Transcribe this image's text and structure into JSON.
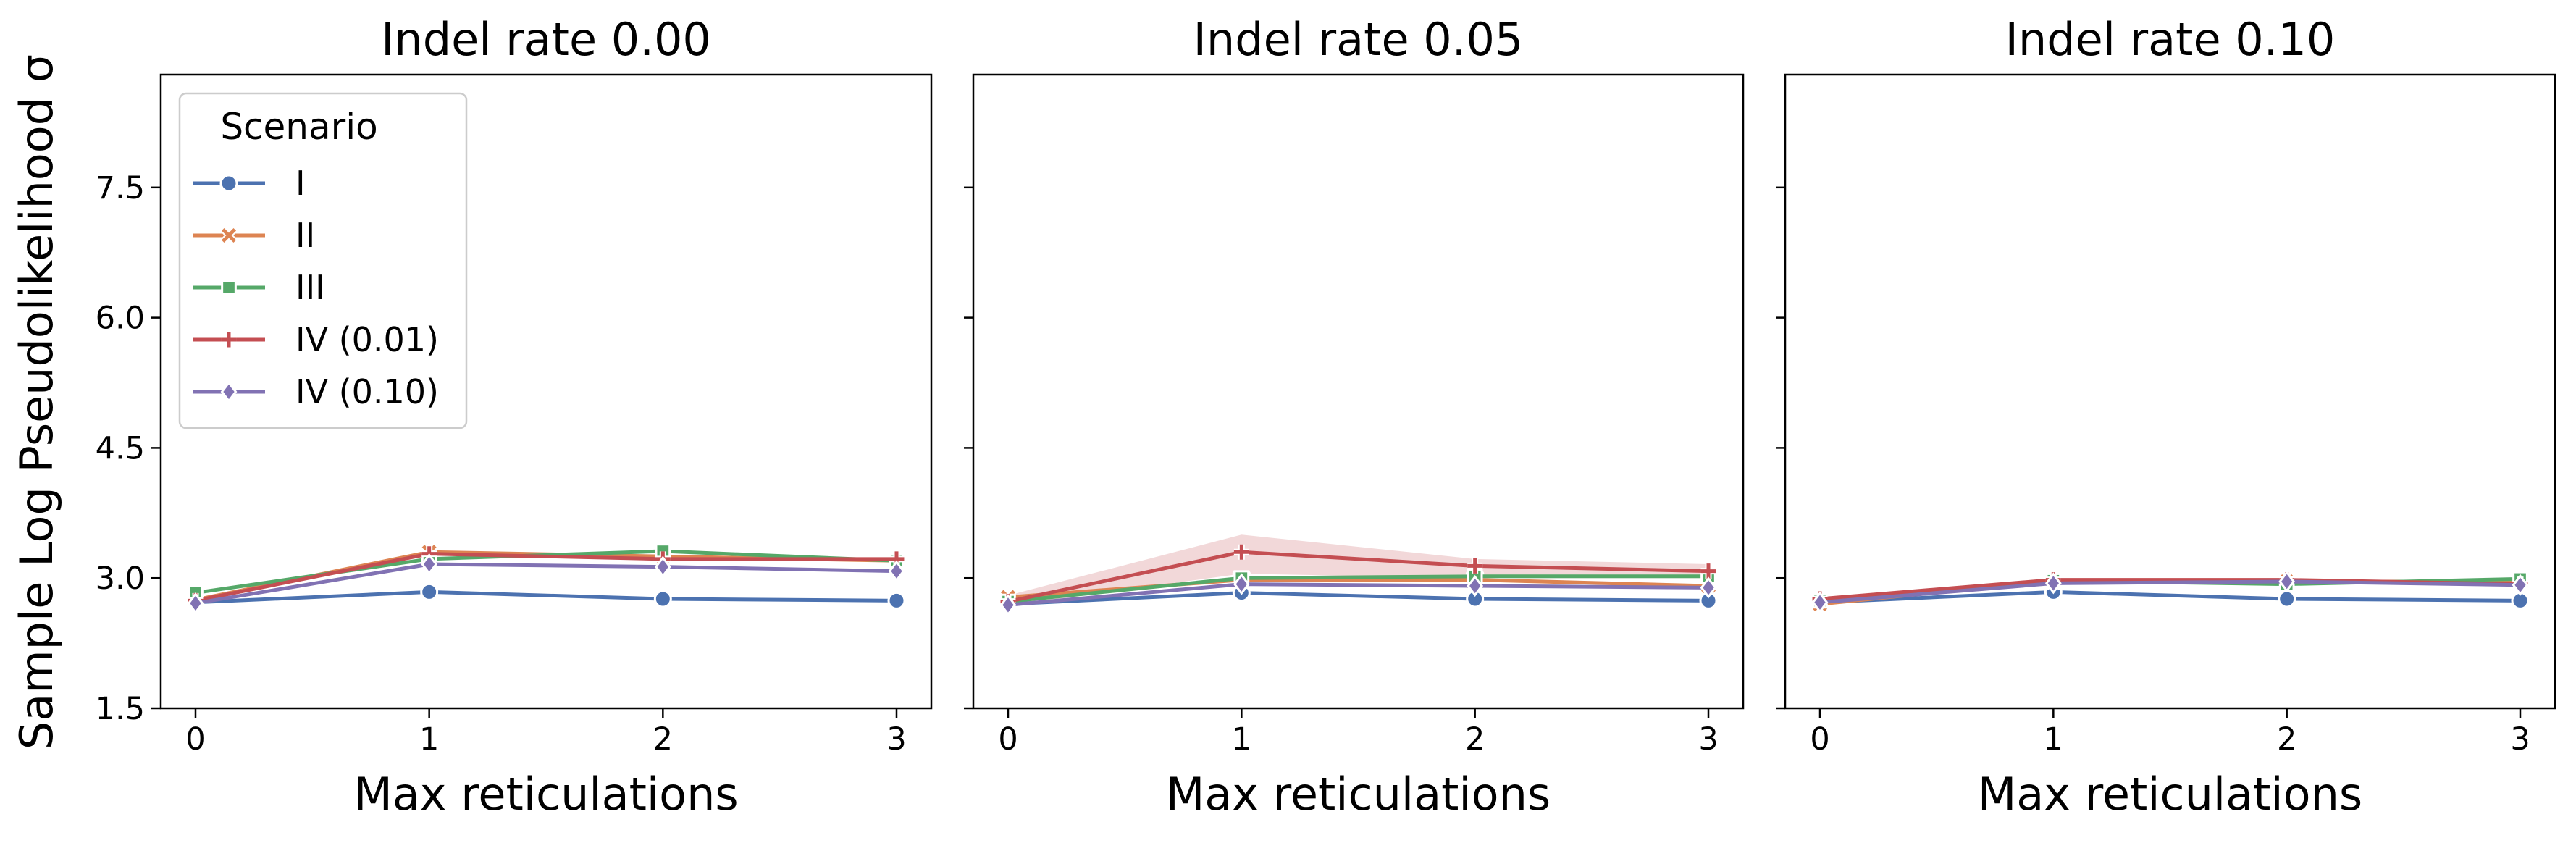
{
  "figure": {
    "y_label": "Sample Log Pseudolikelihood σ",
    "x_label": "Max reticulations"
  },
  "legend": {
    "title": "Scenario",
    "entries": [
      "I",
      "II",
      "III",
      "IV (0.01)",
      "IV (0.10)"
    ]
  },
  "chart_data": [
    {
      "type": "line",
      "title": "Indel rate 0.00",
      "xlabel": "Max reticulations",
      "ylabel": "Sample Log Pseudolikelihood σ",
      "x": [
        0,
        1,
        2,
        3
      ],
      "x_ticks": [
        "0",
        "1",
        "2",
        "3"
      ],
      "y_ticks": [
        "1.5",
        "3.0",
        "4.5",
        "6.0",
        "7.5"
      ],
      "ylim": [
        1.5,
        8.8
      ],
      "legend": "top-left",
      "series": [
        {
          "name": "I",
          "color": "#4c72b0",
          "marker": "circle",
          "values": [
            2.72,
            2.84,
            2.76,
            2.74
          ]
        },
        {
          "name": "II",
          "color": "#dd8452",
          "marker": "x",
          "values": [
            2.75,
            3.3,
            3.25,
            3.2
          ]
        },
        {
          "name": "III",
          "color": "#55a868",
          "marker": "square",
          "values": [
            2.83,
            3.22,
            3.31,
            3.2
          ]
        },
        {
          "name": "IV (0.01)",
          "color": "#c44e52",
          "marker": "plus",
          "values": [
            2.74,
            3.28,
            3.22,
            3.22
          ]
        },
        {
          "name": "IV (0.10)",
          "color": "#8172b3",
          "marker": "diamond",
          "values": [
            2.71,
            3.16,
            3.13,
            3.08
          ]
        }
      ]
    },
    {
      "type": "line",
      "title": "Indel rate 0.05",
      "xlabel": "Max reticulations",
      "x": [
        0,
        1,
        2,
        3
      ],
      "x_ticks": [
        "0",
        "1",
        "2",
        "3"
      ],
      "ylim": [
        1.5,
        8.8
      ],
      "series": [
        {
          "name": "I",
          "color": "#4c72b0",
          "marker": "circle",
          "values": [
            2.7,
            2.83,
            2.76,
            2.74
          ]
        },
        {
          "name": "II",
          "color": "#dd8452",
          "marker": "x",
          "values": [
            2.78,
            2.98,
            2.98,
            2.91
          ]
        },
        {
          "name": "III",
          "color": "#55a868",
          "marker": "square",
          "values": [
            2.73,
            3.0,
            3.02,
            3.02
          ]
        },
        {
          "name": "IV (0.01)",
          "color": "#c44e52",
          "marker": "plus",
          "values": [
            2.73,
            3.3,
            3.14,
            3.08
          ],
          "band_low": [
            2.68,
            3.05,
            3.0,
            3.0
          ],
          "band_high": [
            2.8,
            3.5,
            3.22,
            3.16
          ]
        },
        {
          "name": "IV (0.10)",
          "color": "#8172b3",
          "marker": "diamond",
          "values": [
            2.69,
            2.93,
            2.91,
            2.89
          ]
        }
      ]
    },
    {
      "type": "line",
      "title": "Indel rate 0.10",
      "xlabel": "Max reticulations",
      "x": [
        0,
        1,
        2,
        3
      ],
      "x_ticks": [
        "0",
        "1",
        "2",
        "3"
      ],
      "ylim": [
        1.5,
        8.8
      ],
      "series": [
        {
          "name": "I",
          "color": "#4c72b0",
          "marker": "circle",
          "values": [
            2.72,
            2.84,
            2.76,
            2.74
          ]
        },
        {
          "name": "II",
          "color": "#dd8452",
          "marker": "x",
          "values": [
            2.7,
            2.97,
            2.96,
            2.96
          ]
        },
        {
          "name": "III",
          "color": "#55a868",
          "marker": "square",
          "values": [
            2.74,
            2.97,
            2.93,
            2.99
          ]
        },
        {
          "name": "IV (0.01)",
          "color": "#c44e52",
          "marker": "plus",
          "values": [
            2.76,
            2.98,
            2.98,
            2.93
          ]
        },
        {
          "name": "IV (0.10)",
          "color": "#8172b3",
          "marker": "diamond",
          "values": [
            2.72,
            2.94,
            2.96,
            2.92
          ]
        }
      ]
    }
  ]
}
